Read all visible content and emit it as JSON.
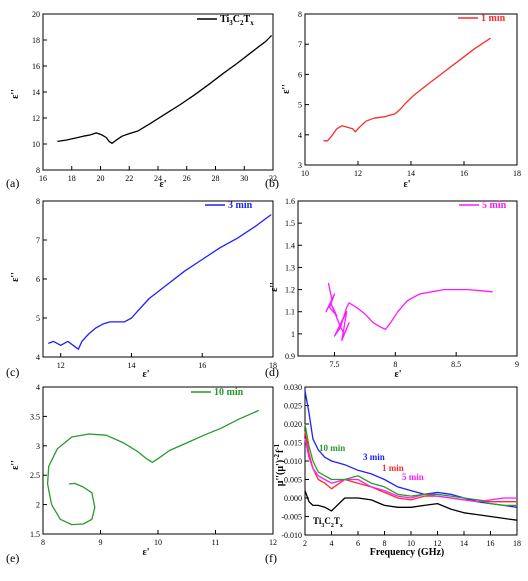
{
  "figure_title": "",
  "chart_data": [
    {
      "type": "line",
      "panel_label": "(a)",
      "xlabel": "ε'",
      "ylabel": "ε''",
      "xlim": [
        16,
        32
      ],
      "ylim": [
        8,
        20
      ],
      "xticks": [
        16,
        18,
        20,
        22,
        24,
        26,
        28,
        30,
        32
      ],
      "yticks": [
        8,
        10,
        12,
        14,
        16,
        18,
        20
      ],
      "legend": {
        "position": "top-right"
      },
      "series": [
        {
          "name": "Ti3C2Tx",
          "name_main": "Ti",
          "name_sub1": "3",
          "name_mid": "C",
          "name_sub2": "2",
          "name_end": "T",
          "name_sub3": "x",
          "color": "#000000",
          "x": [
            17.0,
            17.6,
            18.2,
            18.8,
            19.3,
            19.7,
            20.1,
            20.4,
            20.6,
            20.8,
            21.1,
            21.5,
            22.0,
            22.6,
            23.5,
            24.5,
            25.5,
            26.5,
            27.5,
            28.5,
            29.5,
            30.5,
            31.5,
            31.9
          ],
          "y": [
            10.2,
            10.3,
            10.45,
            10.6,
            10.7,
            10.85,
            10.7,
            10.5,
            10.2,
            10.05,
            10.3,
            10.6,
            10.8,
            11.0,
            11.6,
            12.3,
            13.0,
            13.75,
            14.55,
            15.4,
            16.2,
            17.05,
            17.9,
            18.35
          ]
        }
      ]
    },
    {
      "type": "line",
      "panel_label": "(b)",
      "xlabel": "ε'",
      "ylabel": "ε''",
      "xlim": [
        10,
        18
      ],
      "ylim": [
        3,
        8
      ],
      "xticks": [
        10,
        12,
        14,
        16,
        18
      ],
      "yticks": [
        3,
        4,
        5,
        6,
        7,
        8
      ],
      "legend": {
        "position": "top-right"
      },
      "series": [
        {
          "name": "1 min",
          "color": "#ff2a2a",
          "x": [
            10.7,
            10.85,
            11.0,
            11.2,
            11.4,
            11.6,
            11.8,
            11.9,
            12.05,
            12.3,
            12.6,
            13.0,
            13.4,
            13.6,
            13.8,
            14.1,
            14.6,
            15.2,
            15.8,
            16.4,
            17.0
          ],
          "y": [
            3.8,
            3.8,
            3.95,
            4.2,
            4.3,
            4.25,
            4.2,
            4.1,
            4.25,
            4.45,
            4.55,
            4.6,
            4.7,
            4.85,
            5.05,
            5.3,
            5.65,
            6.05,
            6.45,
            6.85,
            7.2
          ]
        }
      ]
    },
    {
      "type": "line",
      "panel_label": "(c)",
      "xlabel": "ε'",
      "ylabel": "ε''",
      "xlim": [
        11.5,
        18
      ],
      "ylim": [
        4,
        8
      ],
      "xticks": [
        12,
        14,
        16,
        18
      ],
      "yticks": [
        4,
        5,
        6,
        7,
        8
      ],
      "legend": {
        "position": "top-right"
      },
      "series": [
        {
          "name": "3 min",
          "color": "#1f1fff",
          "x": [
            11.65,
            11.8,
            12.0,
            12.2,
            12.35,
            12.5,
            12.6,
            12.8,
            13.0,
            13.2,
            13.4,
            13.6,
            13.8,
            14.0,
            14.2,
            14.5,
            15.0,
            15.5,
            16.0,
            16.5,
            17.0,
            17.5,
            17.95
          ],
          "y": [
            4.35,
            4.4,
            4.3,
            4.4,
            4.3,
            4.2,
            4.4,
            4.6,
            4.75,
            4.85,
            4.9,
            4.9,
            4.9,
            5.0,
            5.2,
            5.5,
            5.85,
            6.2,
            6.5,
            6.8,
            7.05,
            7.35,
            7.65
          ]
        }
      ]
    },
    {
      "type": "line",
      "panel_label": "(d)",
      "xlabel": "ε'",
      "ylabel": "ε''",
      "xlim": [
        7.2,
        9.0
      ],
      "ylim": [
        0.9,
        1.6
      ],
      "xticks": [
        7.5,
        8.0,
        8.5,
        9.0
      ],
      "yticks": [
        0.9,
        1.0,
        1.1,
        1.2,
        1.3,
        1.4,
        1.5,
        1.6
      ],
      "legend": {
        "position": "top-right"
      },
      "series": [
        {
          "name": "5 min",
          "color": "#ff1aff",
          "x": [
            7.45,
            7.48,
            7.43,
            7.5,
            7.46,
            7.52,
            7.47,
            7.55,
            7.5,
            7.58,
            7.53,
            7.6,
            7.56,
            7.62,
            7.58,
            7.55,
            7.6,
            7.62,
            7.68,
            7.75,
            7.82,
            7.88,
            7.92,
            7.96,
            8.02,
            8.1,
            8.2,
            8.3,
            8.4,
            8.5,
            8.6,
            8.7,
            8.8
          ],
          "y": [
            1.23,
            1.15,
            1.1,
            1.18,
            1.12,
            1.08,
            1.14,
            1.03,
            0.99,
            1.08,
            1.02,
            1.1,
            0.97,
            1.05,
            1.0,
            1.03,
            1.12,
            1.14,
            1.12,
            1.09,
            1.05,
            1.03,
            1.02,
            1.05,
            1.1,
            1.15,
            1.18,
            1.19,
            1.2,
            1.2,
            1.2,
            1.195,
            1.19
          ]
        }
      ]
    },
    {
      "type": "line",
      "panel_label": "(e)",
      "xlabel": "ε'",
      "ylabel": "ε''",
      "xlim": [
        8,
        12
      ],
      "ylim": [
        1.5,
        4.0
      ],
      "xticks": [
        8,
        9,
        10,
        11,
        12
      ],
      "yticks": [
        1.5,
        2.0,
        2.5,
        3.0,
        3.5,
        4.0
      ],
      "legend": {
        "position": "top-right"
      },
      "series": [
        {
          "name": "10 min",
          "color": "#2a9a2a",
          "x": [
            8.45,
            8.55,
            8.7,
            8.85,
            8.9,
            8.85,
            8.7,
            8.5,
            8.3,
            8.15,
            8.08,
            8.1,
            8.25,
            8.5,
            8.8,
            9.1,
            9.4,
            9.65,
            9.8,
            9.9,
            10.0,
            10.2,
            10.5,
            10.8,
            11.1,
            11.4,
            11.75
          ],
          "y": [
            2.35,
            2.36,
            2.3,
            2.2,
            1.95,
            1.75,
            1.67,
            1.66,
            1.75,
            2.0,
            2.35,
            2.65,
            2.95,
            3.15,
            3.2,
            3.18,
            3.05,
            2.9,
            2.78,
            2.72,
            2.78,
            2.92,
            3.05,
            3.18,
            3.3,
            3.45,
            3.6
          ]
        }
      ]
    },
    {
      "type": "line",
      "panel_label": "(f)",
      "xlabel": "Frequency (GHz)",
      "ylabel": "μ''(μ')^-2 f^-1",
      "ylabel_parts": {
        "a": "μ''(μ')",
        "b": "-2",
        "c": "f",
        "d": "-1"
      },
      "xlim": [
        2,
        18
      ],
      "ylim": [
        -0.01,
        0.03
      ],
      "xticks": [
        2,
        4,
        6,
        8,
        10,
        12,
        14,
        16,
        18
      ],
      "yticks": [
        -0.01,
        -0.005,
        0.0,
        0.005,
        0.01,
        0.015,
        0.02,
        0.025,
        0.03
      ],
      "ytick_labels": [
        "-0.010",
        "-0.005",
        "0.000",
        "0.005",
        "0.010",
        "0.015",
        "0.020",
        "0.025",
        "0.030"
      ],
      "legend": {
        "position": "inline"
      },
      "x": [
        2.0,
        2.3,
        2.6,
        3.0,
        3.5,
        4.0,
        5.0,
        6.0,
        7.0,
        8.0,
        9.0,
        10.0,
        11.0,
        12.0,
        13.0,
        14.0,
        15.0,
        16.0,
        17.0,
        18.0
      ],
      "series": [
        {
          "name": "Ti3C2Tx",
          "color": "#000000",
          "y": [
            0.002,
            -0.001,
            -0.002,
            -0.002,
            -0.0025,
            -0.0035,
            0.0,
            0.0,
            -0.0005,
            -0.002,
            -0.0025,
            -0.0025,
            -0.002,
            -0.0015,
            -0.003,
            -0.004,
            -0.0045,
            -0.005,
            -0.0055,
            -0.006
          ]
        },
        {
          "name": "1 min",
          "color": "#ff2a2a",
          "y": [
            0.018,
            0.012,
            0.008,
            0.005,
            0.004,
            0.0025,
            0.005,
            0.004,
            0.003,
            0.0015,
            0.0,
            -0.0005,
            0.0005,
            0.0005,
            0.0,
            -0.0005,
            -0.0005,
            -0.001,
            -0.001,
            -0.001
          ]
        },
        {
          "name": "3 min",
          "color": "#1f1fff",
          "y": [
            0.029,
            0.023,
            0.016,
            0.013,
            0.011,
            0.01,
            0.009,
            0.0075,
            0.0065,
            0.005,
            0.003,
            0.002,
            0.001,
            0.0015,
            0.001,
            0.0,
            -0.001,
            -0.0015,
            -0.002,
            -0.0025
          ]
        },
        {
          "name": "5 min",
          "color": "#ff1aff",
          "y": [
            0.016,
            0.011,
            0.008,
            0.006,
            0.005,
            0.004,
            0.005,
            0.005,
            0.003,
            0.002,
            0.0005,
            0.0,
            0.001,
            0.0005,
            0.0,
            -0.0005,
            -0.001,
            -0.0005,
            0.0,
            0.0
          ]
        },
        {
          "name": "10 min",
          "color": "#2a9a2a",
          "y": [
            0.02,
            0.014,
            0.01,
            0.007,
            0.006,
            0.005,
            0.005,
            0.006,
            0.004,
            0.003,
            0.001,
            0.0005,
            0.001,
            0.001,
            0.0005,
            0.0,
            -0.0005,
            -0.0015,
            -0.002,
            -0.002
          ]
        }
      ]
    }
  ]
}
